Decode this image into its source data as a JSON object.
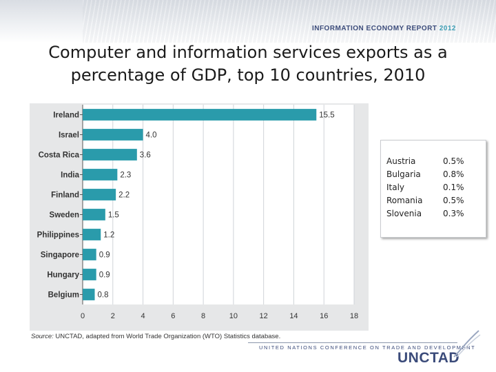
{
  "header": {
    "report_name": "INFORMATION ECONOMY REPORT",
    "report_year": "2012"
  },
  "slide": {
    "title_line1": "Computer and information services exports as a",
    "title_line2": "percentage of GDP, top 10 countries, 2010"
  },
  "chart_data": {
    "type": "bar",
    "orientation": "horizontal",
    "categories": [
      "Ireland",
      "Israel",
      "Costa Rica",
      "India",
      "Finland",
      "Sweden",
      "Philippines",
      "Singapore",
      "Hungary",
      "Belgium"
    ],
    "values": [
      15.5,
      4.0,
      3.6,
      2.3,
      2.2,
      1.5,
      1.2,
      0.9,
      0.9,
      0.8
    ],
    "value_labels": [
      "15.5",
      "4.0",
      "3.6",
      "2.3",
      "2.2",
      "1.5",
      "1.2",
      "0.9",
      "0.9",
      "0.8"
    ],
    "xlim": [
      0,
      18
    ],
    "x_ticks": [
      0,
      2,
      4,
      6,
      8,
      10,
      12,
      14,
      16,
      18
    ],
    "grid": "vertical",
    "bar_color": "#2a9bab",
    "source_label": "Source:",
    "source_text": "UNCTAD, adapted from World Trade Organization (WTO) Statistics database."
  },
  "side_table": {
    "rows": [
      {
        "country": "Austria",
        "value": "0.5%"
      },
      {
        "country": "Bulgaria",
        "value": "0.8%"
      },
      {
        "country": "Italy",
        "value": "0.1%"
      },
      {
        "country": "Romania",
        "value": "0.5%"
      },
      {
        "country": "Slovenia",
        "value": "0.3%"
      }
    ]
  },
  "footer": {
    "organization": "UNITED NATIONS CONFERENCE ON TRADE AND DEVELOPMENT",
    "logo_text": "UNCTAD"
  }
}
